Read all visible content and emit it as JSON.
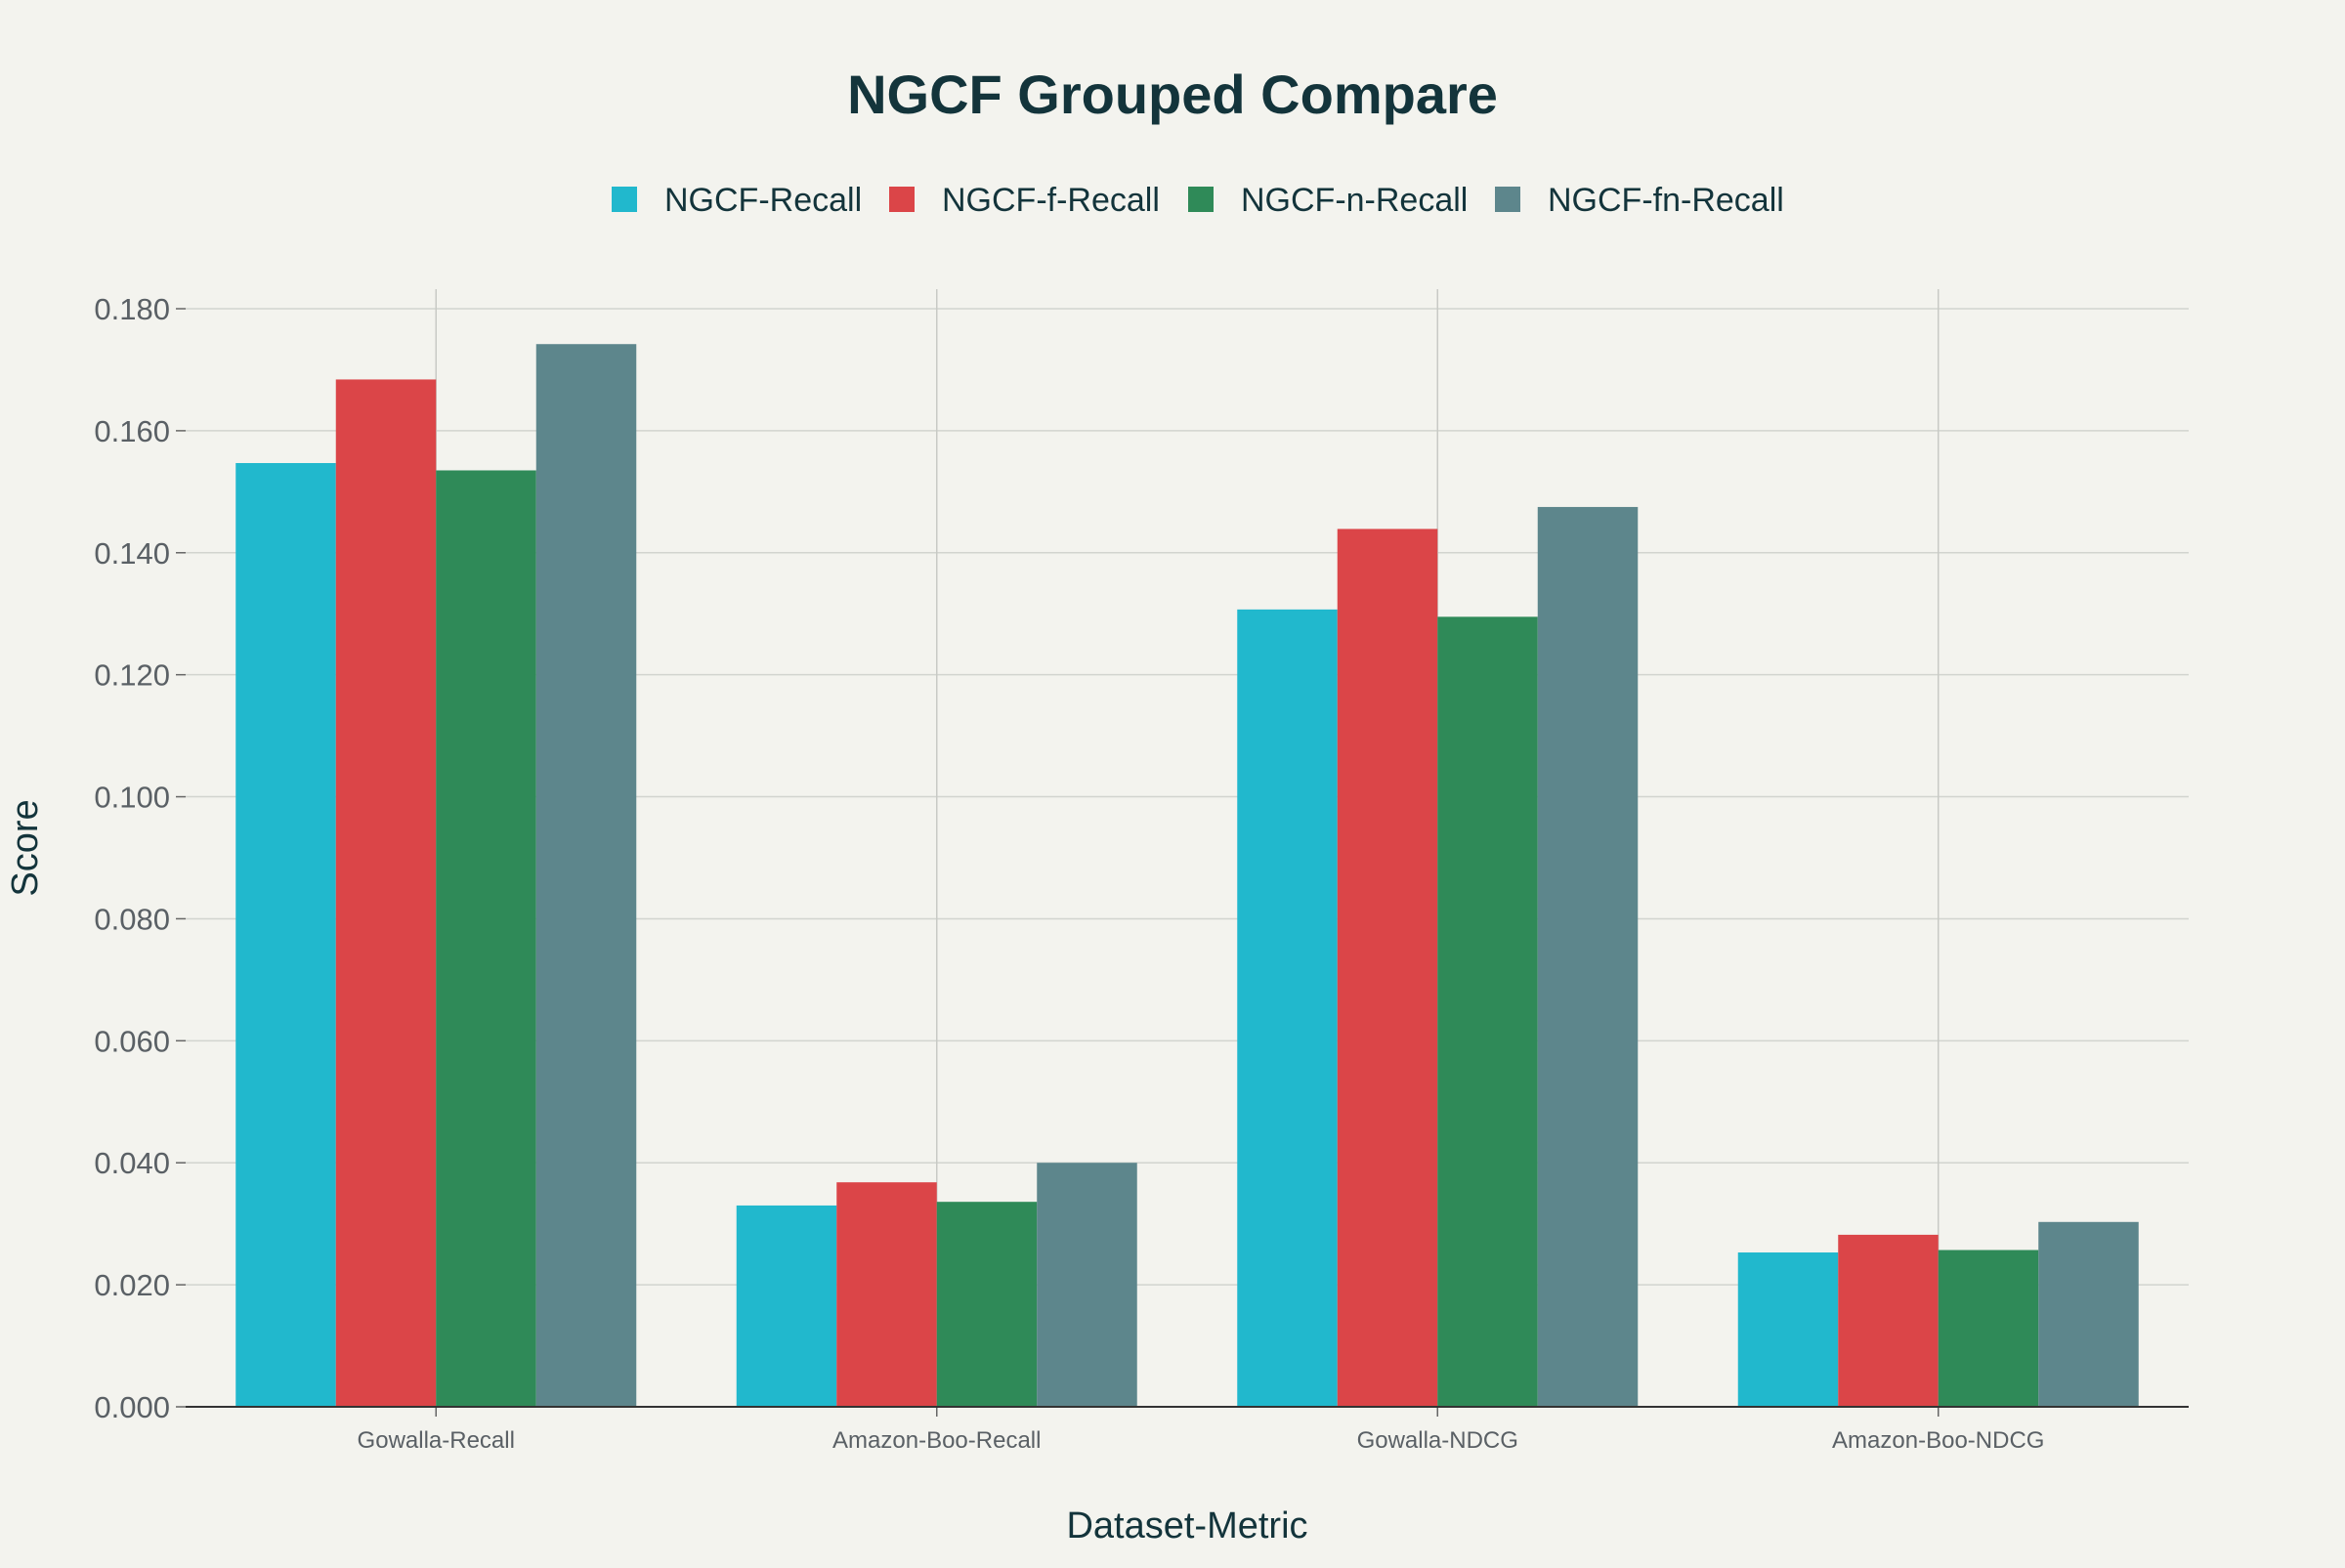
{
  "chart_data": {
    "type": "bar",
    "title": "NGCF Grouped Compare",
    "xlabel": "Dataset-Metric",
    "ylabel": "Score",
    "categories": [
      "Gowalla-Recall",
      "Amazon-Boo-Recall",
      "Gowalla-NDCG",
      "Amazon-Boo-NDCG"
    ],
    "series": [
      {
        "name": "NGCF-Recall",
        "color": "#21b8cd",
        "values": [
          0.1547,
          0.033,
          0.1307,
          0.0253
        ]
      },
      {
        "name": "NGCF-f-Recall",
        "color": "#db4548",
        "values": [
          0.1684,
          0.0368,
          0.1439,
          0.0282
        ]
      },
      {
        "name": "NGCF-n-Recall",
        "color": "#2f8a58",
        "values": [
          0.1535,
          0.0336,
          0.1295,
          0.0257
        ]
      },
      {
        "name": "NGCF-fn-Recall",
        "color": "#5d868c",
        "values": [
          0.1742,
          0.04,
          0.1475,
          0.0303
        ]
      }
    ],
    "ylim": [
      0,
      0.18
    ],
    "yticks": [
      "0.000",
      "0.020",
      "0.040",
      "0.060",
      "0.080",
      "0.100",
      "0.120",
      "0.140",
      "0.160",
      "0.180"
    ],
    "grid": true,
    "legend_position": "top-center"
  }
}
